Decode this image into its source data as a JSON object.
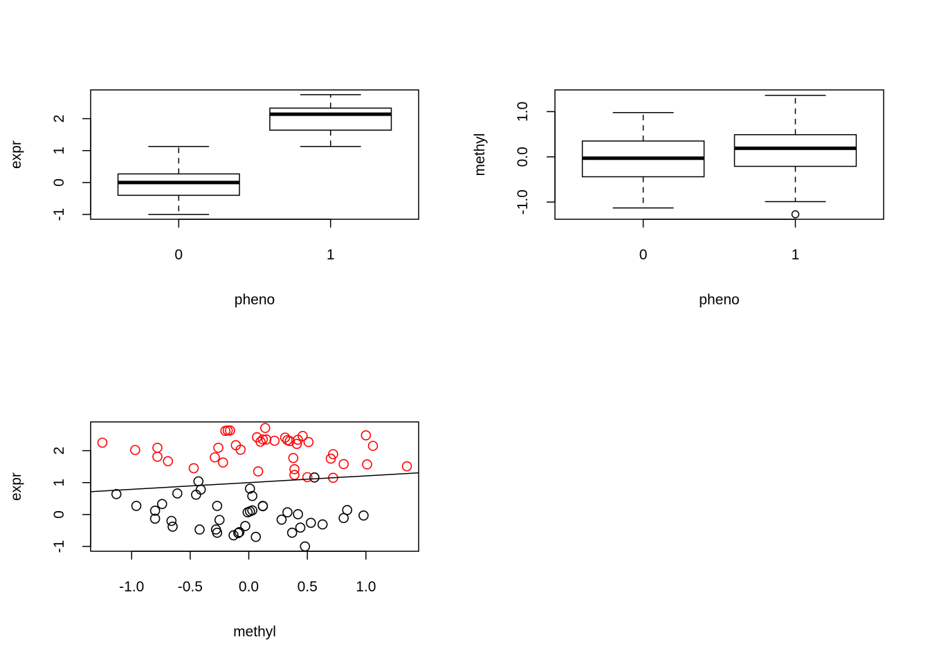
{
  "chart_data": [
    {
      "id": "box-expr",
      "type": "box",
      "xlabel": "pheno",
      "ylabel": "expr",
      "categories": [
        "0",
        "1"
      ],
      "ylim": [
        -1.15,
        2.9
      ],
      "yticks": [
        "-1",
        "0",
        "1",
        "2"
      ],
      "boxes": [
        {
          "min": -1.0,
          "q1": -0.4,
          "median": 0.0,
          "q3": 0.27,
          "max": 1.13,
          "outliers": []
        },
        {
          "min": 1.13,
          "q1": 1.64,
          "median": 2.14,
          "q3": 2.33,
          "max": 2.75,
          "outliers": []
        }
      ],
      "colors": {
        "line": "#000000"
      }
    },
    {
      "id": "box-methyl",
      "type": "box",
      "xlabel": "pheno",
      "ylabel": "methyl",
      "categories": [
        "0",
        "1"
      ],
      "ylim": [
        -1.38,
        1.48
      ],
      "yticks": [
        "-1.0",
        "0.0",
        "1.0"
      ],
      "boxes": [
        {
          "min": -1.13,
          "q1": -0.44,
          "median": -0.03,
          "q3": 0.35,
          "max": 0.98,
          "outliers": []
        },
        {
          "min": -0.99,
          "q1": -0.21,
          "median": 0.19,
          "q3": 0.49,
          "max": 1.36,
          "outliers": [
            -1.27
          ]
        }
      ],
      "colors": {
        "line": "#000000"
      }
    },
    {
      "id": "scatter-expr-methyl",
      "type": "scatter",
      "xlabel": "methyl",
      "ylabel": "expr",
      "xlim": [
        -1.35,
        1.45
      ],
      "ylim": [
        -1.15,
        2.9
      ],
      "xticks": [
        "-1.0",
        "-0.5",
        "0.0",
        "0.5",
        "1.0"
      ],
      "yticks": [
        "-1",
        "0",
        "1",
        "2"
      ],
      "regression_line": {
        "intercept": 1.0,
        "slope": 0.21
      },
      "colors": {
        "group0": "#000000",
        "group1": "#ff0000",
        "line": "#000000"
      },
      "series": [
        {
          "group": "0",
          "points": [
            [
              -1.13,
              0.64
            ],
            [
              -0.96,
              0.27
            ],
            [
              -0.8,
              0.12
            ],
            [
              -0.8,
              -0.13
            ],
            [
              -0.74,
              0.33
            ],
            [
              -0.66,
              -0.2
            ],
            [
              -0.65,
              -0.38
            ],
            [
              -0.61,
              0.66
            ],
            [
              -0.45,
              0.62
            ],
            [
              -0.43,
              1.04
            ],
            [
              -0.41,
              0.78
            ],
            [
              -0.42,
              -0.47
            ],
            [
              -0.27,
              0.27
            ],
            [
              -0.28,
              -0.47
            ],
            [
              -0.27,
              -0.57
            ],
            [
              -0.25,
              -0.17
            ],
            [
              -0.13,
              -0.65
            ],
            [
              -0.09,
              -0.58
            ],
            [
              -0.08,
              -0.55
            ],
            [
              -0.03,
              -0.36
            ],
            [
              -0.01,
              0.07
            ],
            [
              0.01,
              0.1
            ],
            [
              0.01,
              0.81
            ],
            [
              0.03,
              0.13
            ],
            [
              0.03,
              0.58
            ],
            [
              0.06,
              -0.7
            ],
            [
              0.12,
              0.27
            ],
            [
              0.12,
              0.26
            ],
            [
              0.28,
              -0.16
            ],
            [
              0.33,
              0.07
            ],
            [
              0.37,
              -0.57
            ],
            [
              0.42,
              0.01
            ],
            [
              0.44,
              -0.41
            ],
            [
              0.48,
              -1.0
            ],
            [
              0.53,
              -0.26
            ],
            [
              0.56,
              1.16
            ],
            [
              0.63,
              -0.31
            ],
            [
              0.81,
              -0.11
            ],
            [
              0.84,
              0.14
            ],
            [
              0.98,
              -0.03
            ]
          ]
        },
        {
          "group": "1",
          "points": [
            [
              -1.25,
              2.25
            ],
            [
              -0.97,
              2.02
            ],
            [
              -0.78,
              2.09
            ],
            [
              -0.78,
              1.81
            ],
            [
              -0.69,
              1.67
            ],
            [
              -0.47,
              1.45
            ],
            [
              -0.29,
              1.79
            ],
            [
              -0.26,
              2.09
            ],
            [
              -0.22,
              1.63
            ],
            [
              -0.2,
              2.62
            ],
            [
              -0.18,
              2.63
            ],
            [
              -0.16,
              2.63
            ],
            [
              -0.11,
              2.17
            ],
            [
              -0.07,
              2.03
            ],
            [
              0.07,
              2.42
            ],
            [
              0.08,
              1.35
            ],
            [
              0.1,
              2.28
            ],
            [
              0.12,
              2.35
            ],
            [
              0.14,
              2.71
            ],
            [
              0.15,
              2.35
            ],
            [
              0.22,
              2.31
            ],
            [
              0.31,
              2.41
            ],
            [
              0.33,
              2.33
            ],
            [
              0.35,
              2.3
            ],
            [
              0.38,
              1.77
            ],
            [
              0.39,
              1.42
            ],
            [
              0.39,
              1.24
            ],
            [
              0.41,
              2.21
            ],
            [
              0.42,
              2.34
            ],
            [
              0.46,
              2.46
            ],
            [
              0.5,
              1.17
            ],
            [
              0.51,
              2.27
            ],
            [
              0.7,
              1.75
            ],
            [
              0.72,
              1.89
            ],
            [
              0.72,
              1.15
            ],
            [
              0.81,
              1.58
            ],
            [
              1.0,
              2.48
            ],
            [
              1.01,
              1.57
            ],
            [
              1.06,
              2.15
            ],
            [
              1.35,
              1.51
            ]
          ]
        }
      ]
    }
  ]
}
